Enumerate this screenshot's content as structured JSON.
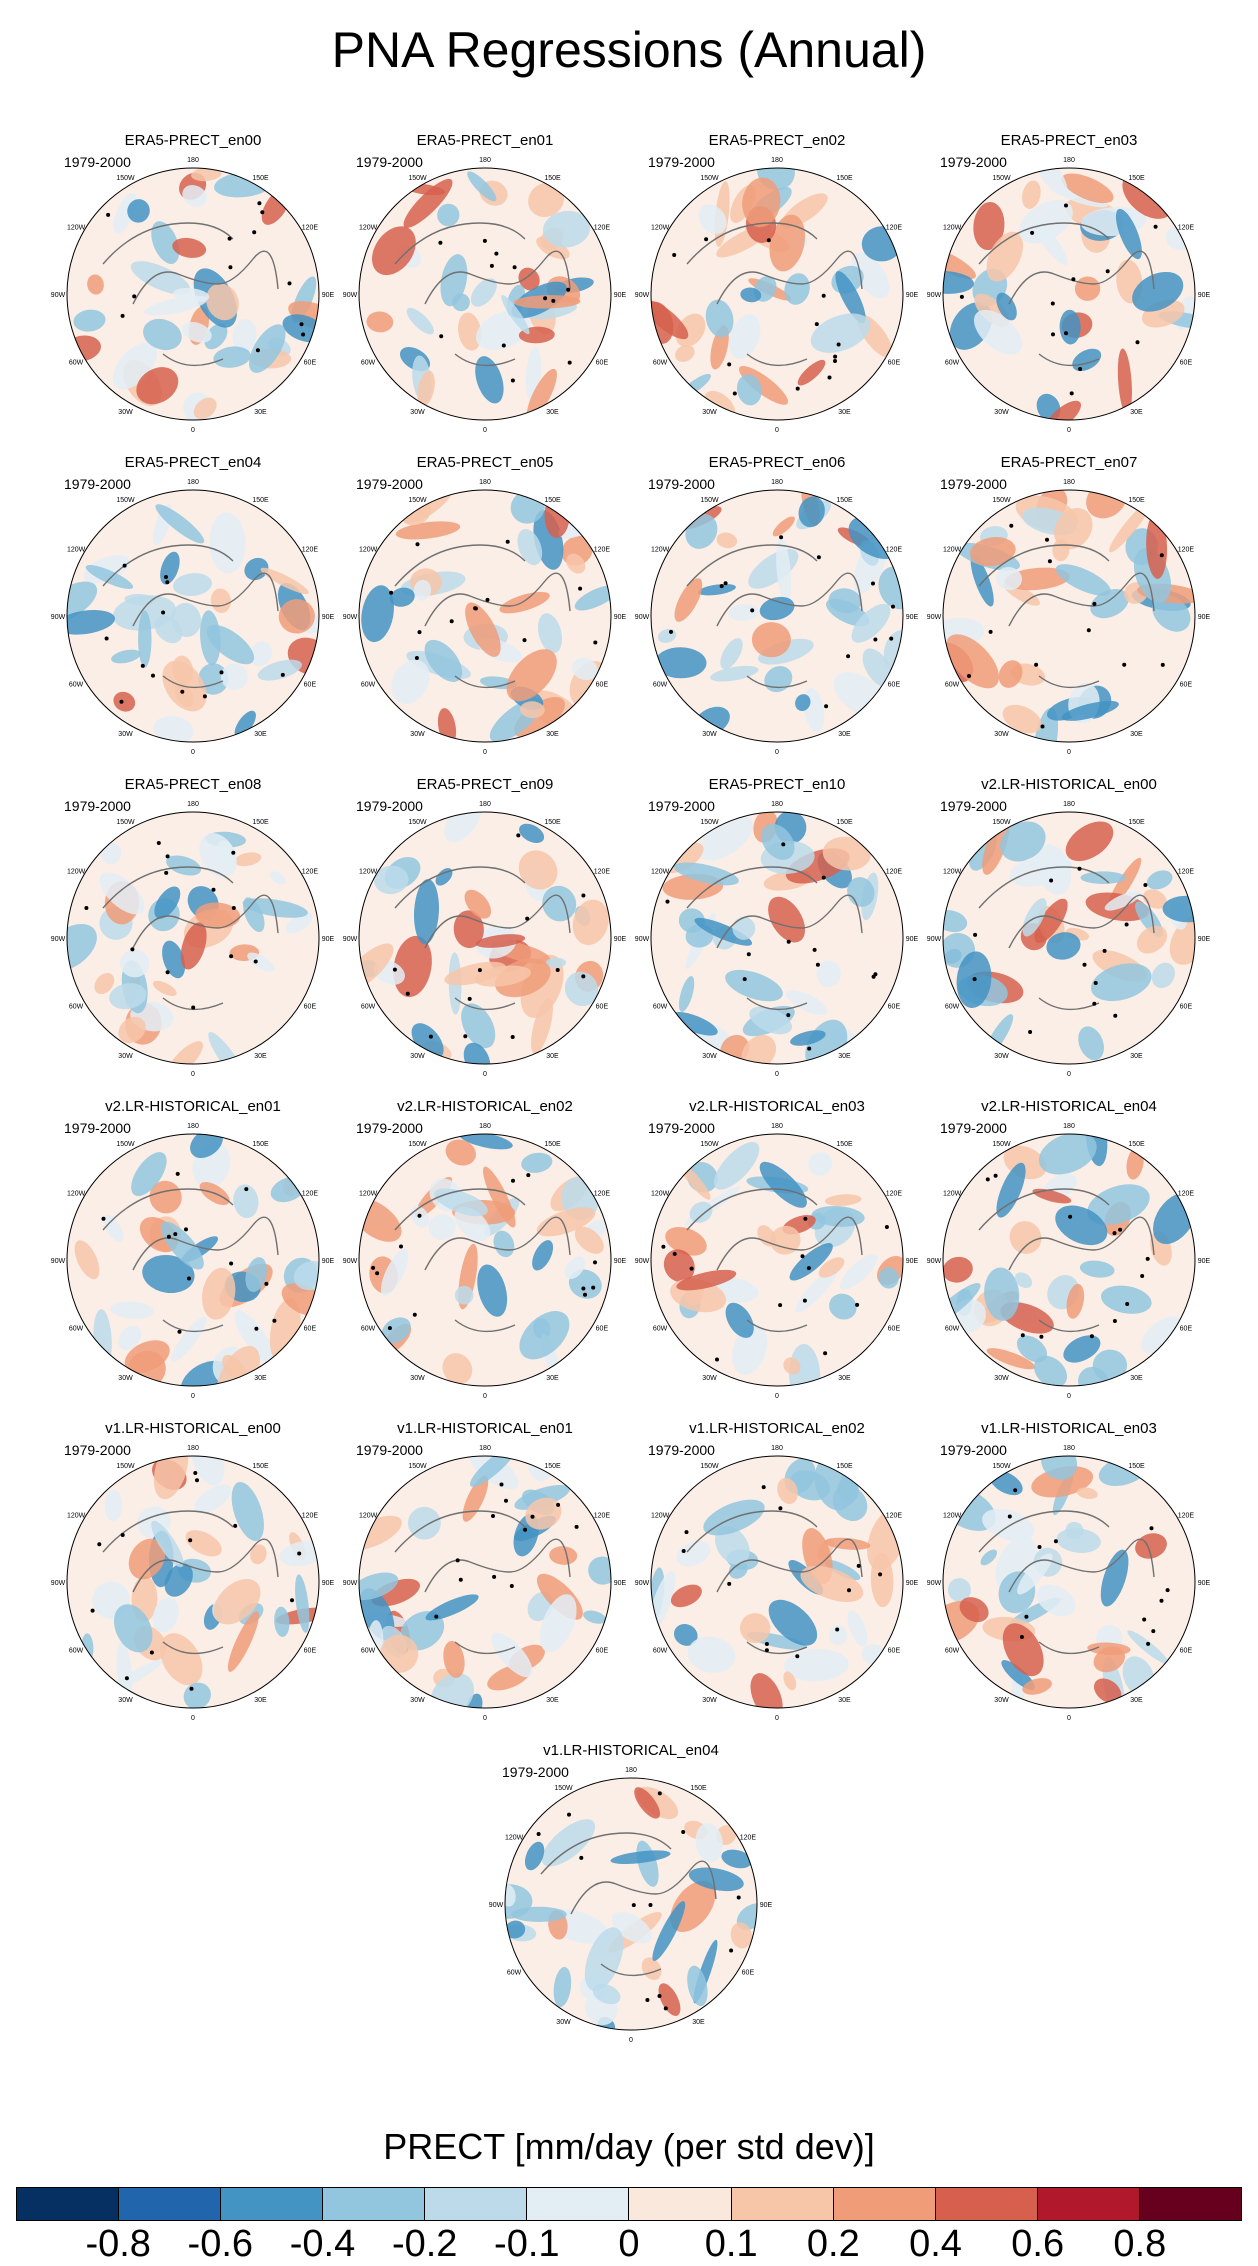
{
  "title": "PNA Regressions (Annual)",
  "chart_data": {
    "type": "heatmap",
    "projection": "north polar stereographic",
    "period": "1979-2000",
    "lon_labels": [
      "180",
      "150E",
      "120E",
      "90E",
      "60E",
      "30E",
      "0",
      "30W",
      "60W",
      "90W",
      "120W",
      "150W"
    ],
    "panels": [
      "ERA5-PRECT_en00",
      "ERA5-PRECT_en01",
      "ERA5-PRECT_en02",
      "ERA5-PRECT_en03",
      "ERA5-PRECT_en04",
      "ERA5-PRECT_en05",
      "ERA5-PRECT_en06",
      "ERA5-PRECT_en07",
      "ERA5-PRECT_en08",
      "ERA5-PRECT_en09",
      "ERA5-PRECT_en10",
      "v2.LR-HISTORICAL_en00",
      "v2.LR-HISTORICAL_en01",
      "v2.LR-HISTORICAL_en02",
      "v2.LR-HISTORICAL_en03",
      "v2.LR-HISTORICAL_en04",
      "v1.LR-HISTORICAL_en00",
      "v1.LR-HISTORICAL_en01",
      "v1.LR-HISTORICAL_en02",
      "v1.LR-HISTORICAL_en03",
      "v1.LR-HISTORICAL_en04"
    ],
    "colorbar": {
      "label": "PRECT [mm/day (per std dev)]",
      "colors": [
        "#053061",
        "#2166ac",
        "#4393c3",
        "#92c5de",
        "#bcdaea",
        "#e3edf4",
        "#fbe8dd",
        "#f7c6a9",
        "#f09c79",
        "#d6604d",
        "#b2182b",
        "#67001f"
      ],
      "tick_labels": [
        "-0.8",
        "-0.6",
        "-0.4",
        "-0.2",
        "-0.1",
        "0",
        "0.1",
        "0.2",
        "0.4",
        "0.6",
        "0.8"
      ]
    }
  }
}
